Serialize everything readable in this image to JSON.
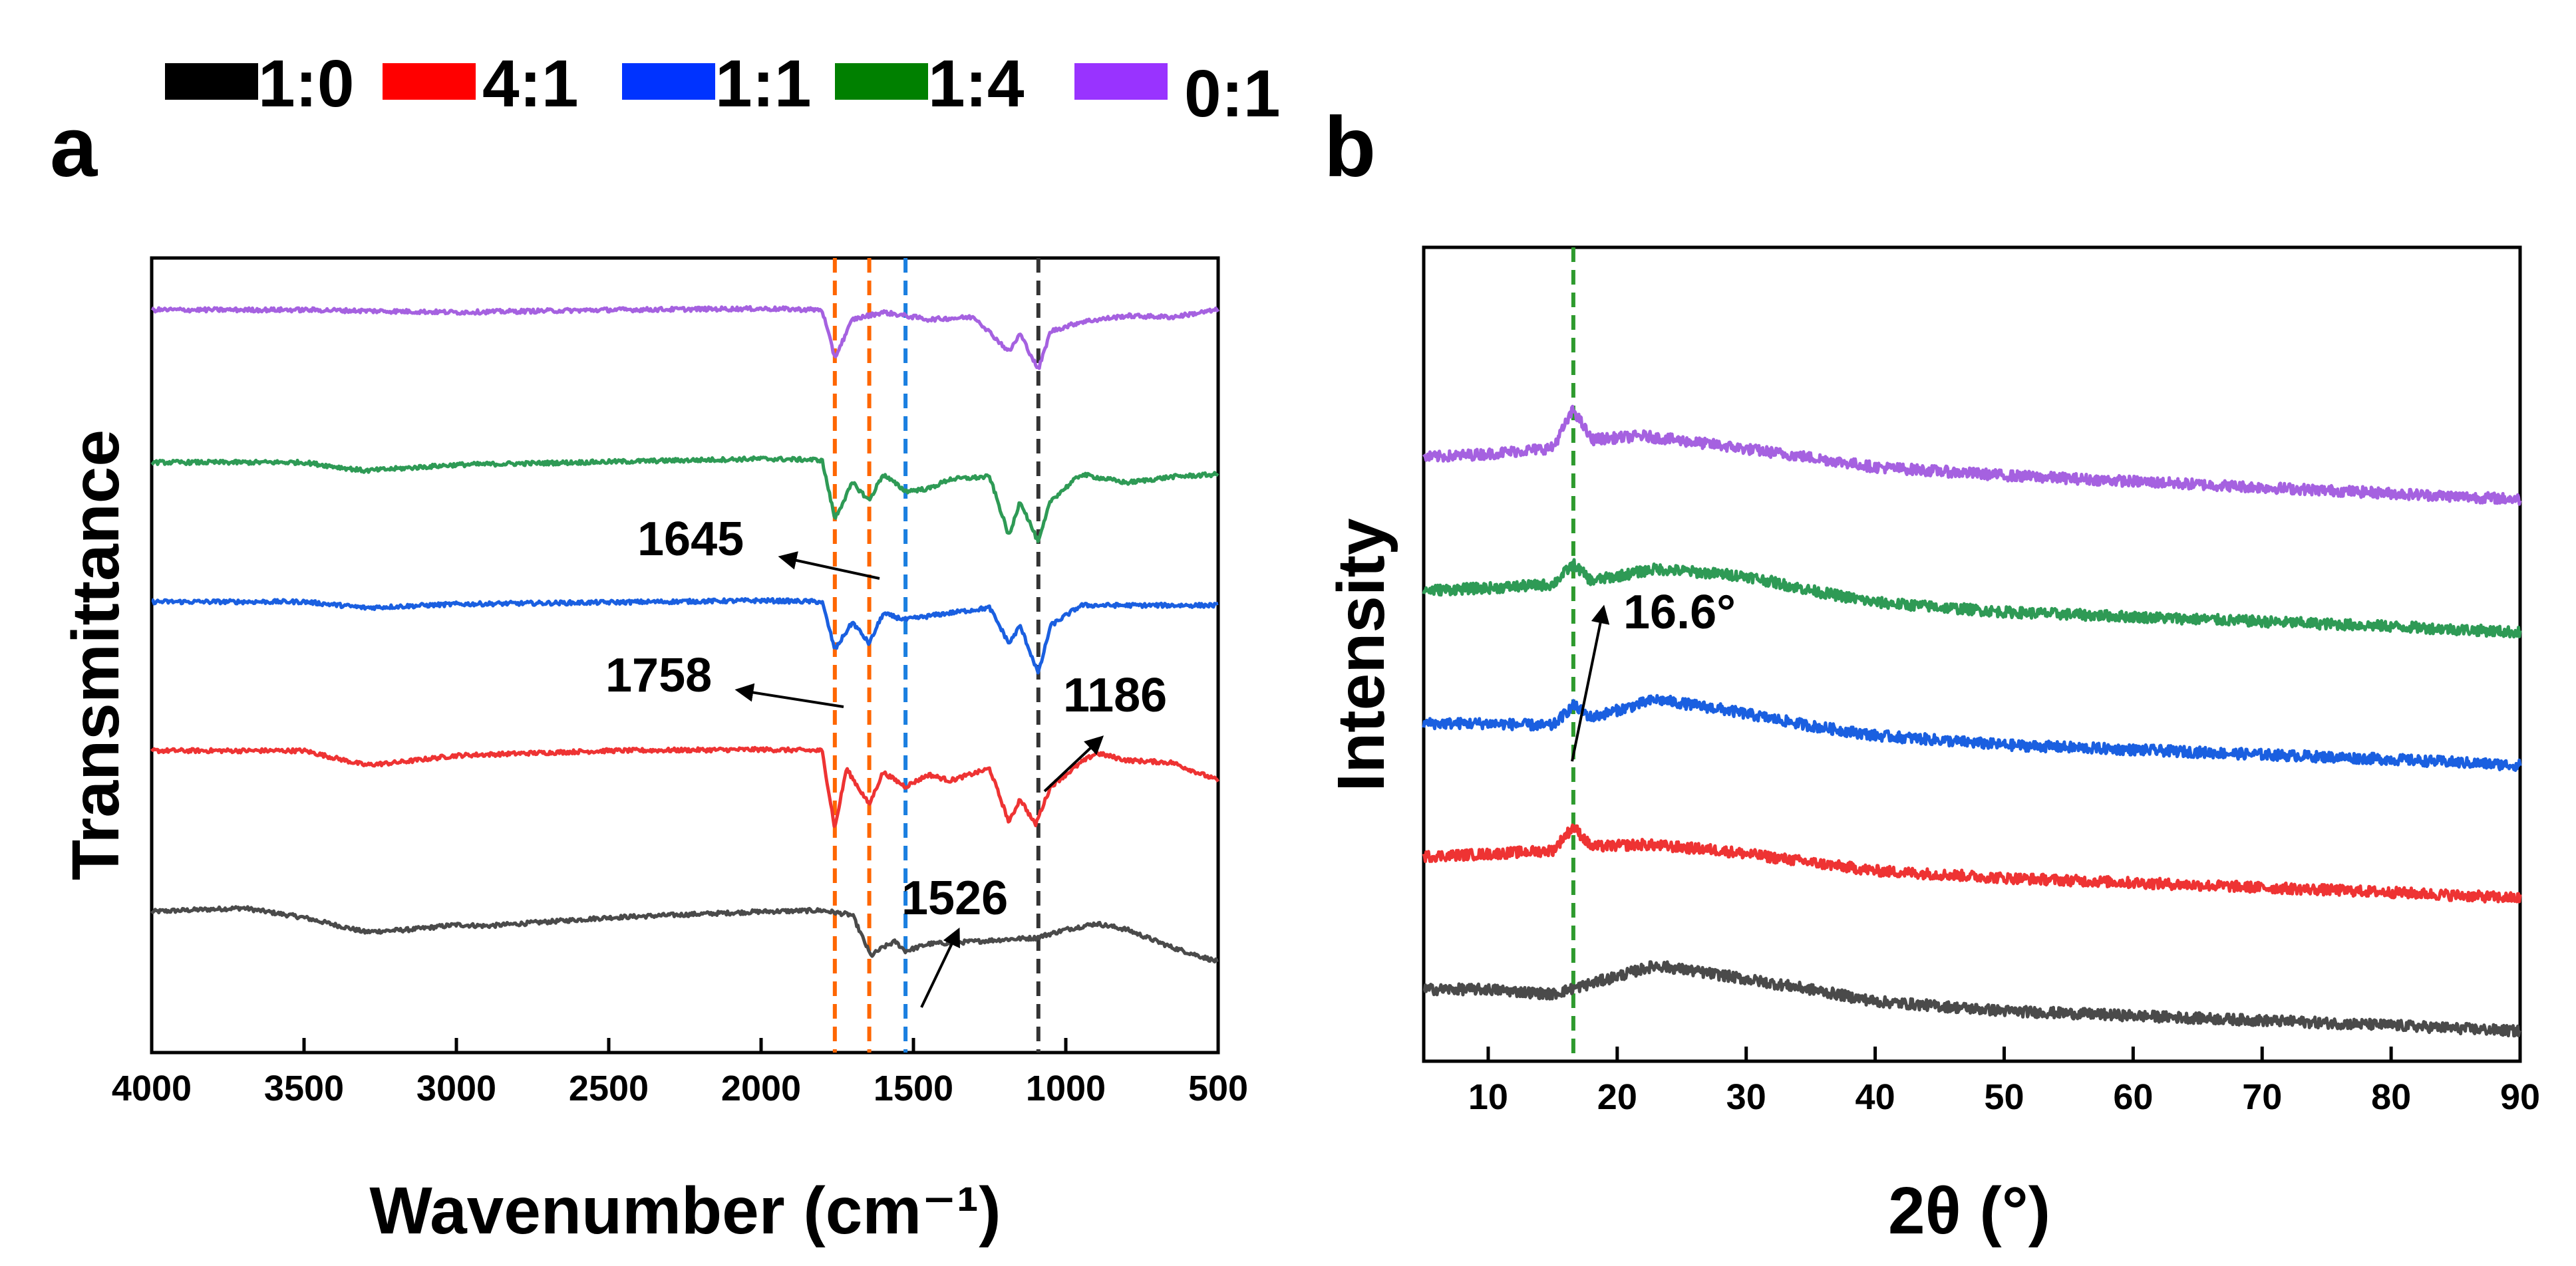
{
  "legend": [
    {
      "label": "1:0",
      "color": "#000000"
    },
    {
      "label": "4:1",
      "color": "#ff0000"
    },
    {
      "label": "1:1",
      "color": "#0033ff"
    },
    {
      "label": "1:4",
      "color": "#008000"
    },
    {
      "label": "0:1",
      "color": "#9933ff"
    }
  ],
  "chart_data": [
    {
      "panel": "a",
      "type": "line",
      "xlabel": "Wavenumber (cm⁻¹)",
      "ylabel": "Transmittance",
      "xlim": [
        4000,
        500
      ],
      "x_reversed": true,
      "xticks": [
        4000,
        3500,
        3000,
        2500,
        2000,
        1500,
        1000,
        500
      ],
      "y_ticks_shown": false,
      "units": "arbitrary offset transmittance",
      "series": [
        {
          "name": "1:0",
          "color": "#4a4a4a",
          "offset": 0.0,
          "baseline": 0.55,
          "points": [
            [
              4000,
              0.55
            ],
            [
              3700,
              0.58
            ],
            [
              3500,
              0.5
            ],
            [
              3300,
              0.38
            ],
            [
              3150,
              0.4
            ],
            [
              3000,
              0.44
            ],
            [
              2900,
              0.43
            ],
            [
              2500,
              0.5
            ],
            [
              2000,
              0.55
            ],
            [
              1800,
              0.56
            ],
            [
              1700,
              0.52
            ],
            [
              1640,
              0.18
            ],
            [
              1600,
              0.25
            ],
            [
              1560,
              0.3
            ],
            [
              1526,
              0.22
            ],
            [
              1450,
              0.28
            ],
            [
              1300,
              0.3
            ],
            [
              1186,
              0.32
            ],
            [
              1100,
              0.33
            ],
            [
              1000,
              0.4
            ],
            [
              900,
              0.45
            ],
            [
              800,
              0.4
            ],
            [
              650,
              0.25
            ],
            [
              500,
              0.13
            ]
          ]
        },
        {
          "name": "4:1",
          "color": "#ee3333",
          "offset": 1.0,
          "baseline": 0.7,
          "points": [
            [
              4000,
              0.7
            ],
            [
              3500,
              0.7
            ],
            [
              3300,
              0.58
            ],
            [
              3200,
              0.6
            ],
            [
              3000,
              0.66
            ],
            [
              2500,
              0.7
            ],
            [
              2000,
              0.71
            ],
            [
              1800,
              0.7
            ],
            [
              1758,
              0.05
            ],
            [
              1720,
              0.55
            ],
            [
              1645,
              0.25
            ],
            [
              1600,
              0.52
            ],
            [
              1526,
              0.4
            ],
            [
              1450,
              0.5
            ],
            [
              1380,
              0.45
            ],
            [
              1250,
              0.55
            ],
            [
              1186,
              0.1
            ],
            [
              1150,
              0.3
            ],
            [
              1100,
              0.08
            ],
            [
              1050,
              0.4
            ],
            [
              950,
              0.6
            ],
            [
              900,
              0.68
            ],
            [
              800,
              0.62
            ],
            [
              650,
              0.6
            ],
            [
              500,
              0.45
            ]
          ]
        },
        {
          "name": "1:1",
          "color": "#1a5fe0",
          "offset": 2.0,
          "baseline": 0.75,
          "points": [
            [
              4000,
              0.75
            ],
            [
              3500,
              0.75
            ],
            [
              3300,
              0.7
            ],
            [
              3000,
              0.73
            ],
            [
              2000,
              0.76
            ],
            [
              1800,
              0.75
            ],
            [
              1758,
              0.35
            ],
            [
              1700,
              0.58
            ],
            [
              1645,
              0.4
            ],
            [
              1600,
              0.65
            ],
            [
              1526,
              0.6
            ],
            [
              1400,
              0.65
            ],
            [
              1250,
              0.7
            ],
            [
              1186,
              0.4
            ],
            [
              1150,
              0.55
            ],
            [
              1090,
              0.15
            ],
            [
              1050,
              0.55
            ],
            [
              950,
              0.72
            ],
            [
              800,
              0.72
            ],
            [
              500,
              0.72
            ]
          ]
        },
        {
          "name": "1:4",
          "color": "#2e9a55",
          "offset": 3.0,
          "baseline": 0.72,
          "points": [
            [
              4000,
              0.72
            ],
            [
              3500,
              0.72
            ],
            [
              3300,
              0.65
            ],
            [
              3000,
              0.7
            ],
            [
              2000,
              0.75
            ],
            [
              1800,
              0.74
            ],
            [
              1758,
              0.25
            ],
            [
              1700,
              0.55
            ],
            [
              1645,
              0.4
            ],
            [
              1600,
              0.62
            ],
            [
              1526,
              0.48
            ],
            [
              1450,
              0.5
            ],
            [
              1380,
              0.58
            ],
            [
              1250,
              0.6
            ],
            [
              1186,
              0.1
            ],
            [
              1150,
              0.4
            ],
            [
              1090,
              0.05
            ],
            [
              1050,
              0.4
            ],
            [
              950,
              0.62
            ],
            [
              800,
              0.55
            ],
            [
              650,
              0.6
            ],
            [
              500,
              0.62
            ]
          ]
        },
        {
          "name": "0:1",
          "color": "#a561e0",
          "offset": 4.0,
          "baseline": 0.8,
          "points": [
            [
              4000,
              0.8
            ],
            [
              3500,
              0.8
            ],
            [
              3000,
              0.78
            ],
            [
              2500,
              0.8
            ],
            [
              2000,
              0.81
            ],
            [
              1800,
              0.8
            ],
            [
              1758,
              0.4
            ],
            [
              1700,
              0.72
            ],
            [
              1600,
              0.78
            ],
            [
              1450,
              0.72
            ],
            [
              1300,
              0.74
            ],
            [
              1186,
              0.45
            ],
            [
              1150,
              0.6
            ],
            [
              1090,
              0.3
            ],
            [
              1050,
              0.62
            ],
            [
              950,
              0.7
            ],
            [
              800,
              0.75
            ],
            [
              650,
              0.74
            ],
            [
              500,
              0.8
            ]
          ]
        }
      ],
      "reference_lines": [
        {
          "x": 1758,
          "color": "#ff6600"
        },
        {
          "x": 1645,
          "color": "#ff6600"
        },
        {
          "x": 1526,
          "color": "#1a7fe0"
        },
        {
          "x": 1090,
          "color": "#333333"
        }
      ],
      "annotations": [
        {
          "text": "1645",
          "arrow_from_x": 1620,
          "arrow_to_x": 2100
        },
        {
          "text": "1758",
          "arrow_from_x": 1740,
          "arrow_to_x": 2100
        },
        {
          "text": "1186",
          "arrow_from_x": 1100,
          "arrow_to_x": 900
        },
        {
          "text": "1526",
          "arrow_from_x": 1540,
          "arrow_to_x": 1350
        }
      ]
    },
    {
      "panel": "b",
      "type": "line",
      "xlabel": "2θ (°)",
      "ylabel": "Intensity",
      "xlim": [
        5,
        90
      ],
      "xticks": [
        10,
        20,
        30,
        40,
        50,
        60,
        70,
        80,
        90
      ],
      "y_ticks_shown": false,
      "units": "arbitrary offset intensity",
      "series": [
        {
          "name": "1:0",
          "color": "#4a4a4a",
          "offset": 0.0,
          "points": [
            [
              5,
              0.4
            ],
            [
              10,
              0.4
            ],
            [
              15,
              0.36
            ],
            [
              18,
              0.45
            ],
            [
              23,
              0.6
            ],
            [
              28,
              0.52
            ],
            [
              35,
              0.4
            ],
            [
              40,
              0.3
            ],
            [
              50,
              0.22
            ],
            [
              60,
              0.18
            ],
            [
              70,
              0.14
            ],
            [
              80,
              0.1
            ],
            [
              90,
              0.05
            ]
          ]
        },
        {
          "name": "4:1",
          "color": "#ee3333",
          "offset": 1.0,
          "points": [
            [
              5,
              0.4
            ],
            [
              10,
              0.42
            ],
            [
              15,
              0.45
            ],
            [
              16.6,
              0.65
            ],
            [
              18,
              0.48
            ],
            [
              22,
              0.5
            ],
            [
              28,
              0.45
            ],
            [
              35,
              0.35
            ],
            [
              40,
              0.28
            ],
            [
              50,
              0.22
            ],
            [
              60,
              0.18
            ],
            [
              70,
              0.14
            ],
            [
              80,
              0.1
            ],
            [
              90,
              0.05
            ]
          ]
        },
        {
          "name": "1:1",
          "color": "#1a5fe0",
          "offset": 2.0,
          "points": [
            [
              5,
              0.4
            ],
            [
              10,
              0.4
            ],
            [
              15,
              0.38
            ],
            [
              16.6,
              0.55
            ],
            [
              18,
              0.45
            ],
            [
              23,
              0.6
            ],
            [
              28,
              0.52
            ],
            [
              35,
              0.38
            ],
            [
              40,
              0.3
            ],
            [
              50,
              0.22
            ],
            [
              60,
              0.18
            ],
            [
              70,
              0.14
            ],
            [
              80,
              0.1
            ],
            [
              90,
              0.05
            ]
          ]
        },
        {
          "name": "1:4",
          "color": "#2e9a55",
          "offset": 3.0,
          "points": [
            [
              5,
              0.4
            ],
            [
              10,
              0.42
            ],
            [
              15,
              0.45
            ],
            [
              16.6,
              0.62
            ],
            [
              18,
              0.48
            ],
            [
              23,
              0.58
            ],
            [
              30,
              0.52
            ],
            [
              35,
              0.4
            ],
            [
              40,
              0.3
            ],
            [
              50,
              0.22
            ],
            [
              60,
              0.18
            ],
            [
              70,
              0.14
            ],
            [
              80,
              0.1
            ],
            [
              90,
              0.05
            ]
          ]
        },
        {
          "name": "0:1",
          "color": "#a561e0",
          "offset": 4.0,
          "points": [
            [
              5,
              0.4
            ],
            [
              10,
              0.43
            ],
            [
              15,
              0.48
            ],
            [
              16.6,
              0.8
            ],
            [
              18,
              0.55
            ],
            [
              22,
              0.58
            ],
            [
              28,
              0.5
            ],
            [
              35,
              0.4
            ],
            [
              40,
              0.32
            ],
            [
              50,
              0.25
            ],
            [
              60,
              0.2
            ],
            [
              70,
              0.15
            ],
            [
              80,
              0.1
            ],
            [
              90,
              0.05
            ]
          ]
        }
      ],
      "reference_lines": [
        {
          "x": 16.6,
          "color": "#2e9a2e"
        }
      ],
      "annotations": [
        {
          "text": "16.6°",
          "arrow_from_x": 16.6,
          "arrow_to_x": 18.5
        }
      ]
    }
  ]
}
